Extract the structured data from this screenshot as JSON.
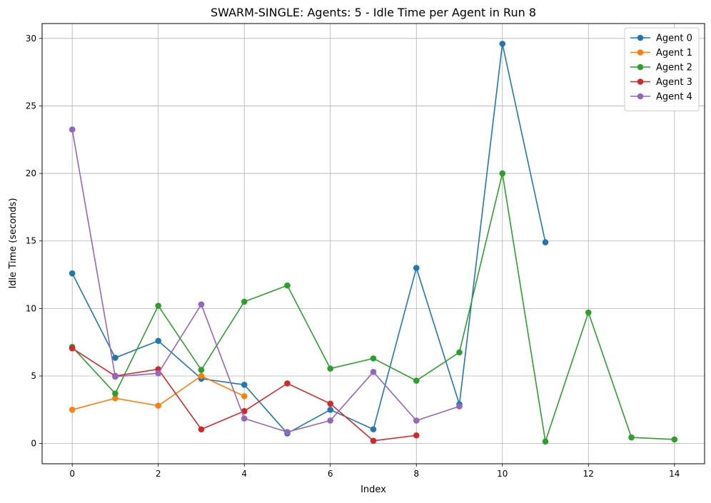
{
  "chart_data": {
    "type": "line",
    "title": "SWARM-SINGLE: Agents: 5 - Idle Time per Agent in Run 8",
    "xlabel": "Index",
    "ylabel": "Idle Time (seconds)",
    "xlim": [
      -0.7,
      14.7
    ],
    "ylim": [
      -1.5,
      31.1
    ],
    "xticks": [
      0,
      2,
      4,
      6,
      8,
      10,
      12,
      14
    ],
    "yticks": [
      0,
      5,
      10,
      15,
      20,
      25,
      30
    ],
    "grid": true,
    "legend_position": "top-right",
    "series": [
      {
        "name": "Agent 0",
        "color": "#1f77b4",
        "x": [
          0,
          1,
          2,
          3,
          4,
          5,
          6,
          7,
          8,
          9,
          10,
          11
        ],
        "values": [
          12.6,
          6.35,
          7.6,
          4.8,
          4.35,
          0.75,
          2.5,
          1.05,
          13.0,
          2.9,
          29.6,
          14.9
        ]
      },
      {
        "name": "Agent 1",
        "color": "#ff7f0e",
        "x": [
          0,
          1,
          2,
          3,
          4
        ],
        "values": [
          2.5,
          3.35,
          2.8,
          5.0,
          3.5
        ]
      },
      {
        "name": "Agent 2",
        "color": "#2ca02c",
        "x": [
          0,
          1,
          2,
          3,
          4,
          5,
          6,
          7,
          8,
          9,
          10,
          11,
          12,
          13,
          14
        ],
        "values": [
          7.15,
          3.7,
          10.2,
          5.45,
          10.5,
          11.7,
          5.55,
          6.3,
          4.65,
          6.75,
          20.0,
          0.15,
          9.7,
          0.45,
          0.3
        ]
      },
      {
        "name": "Agent 3",
        "color": "#d62728",
        "x": [
          0,
          1,
          2,
          3,
          4,
          5,
          6,
          7,
          8
        ],
        "values": [
          7.05,
          5.0,
          5.5,
          1.05,
          2.4,
          4.45,
          2.95,
          0.2,
          0.6
        ]
      },
      {
        "name": "Agent 4",
        "color": "#9467bd",
        "x": [
          0,
          1,
          2,
          3,
          4,
          5,
          6,
          7,
          8,
          9
        ],
        "values": [
          23.25,
          4.95,
          5.2,
          10.3,
          1.85,
          0.85,
          1.7,
          5.3,
          1.7,
          2.75
        ]
      }
    ]
  }
}
